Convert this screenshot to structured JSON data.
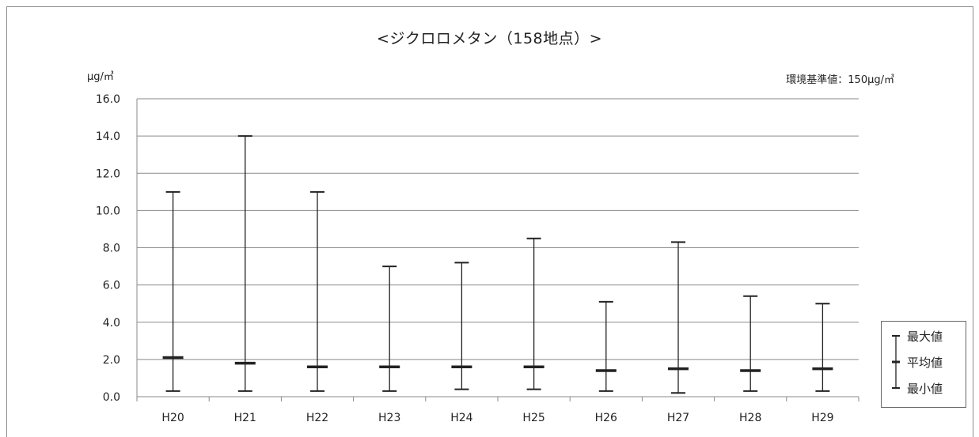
{
  "chart_data": {
    "type": "errorbar",
    "title": "<ジクロロメタン（158地点）>",
    "ylabel": "μg/㎥",
    "annotation": "環境基準値：150μg/㎥",
    "categories": [
      "H20",
      "H21",
      "H22",
      "H23",
      "H24",
      "H25",
      "H26",
      "H27",
      "H28",
      "H29"
    ],
    "series": [
      {
        "name": "最大値",
        "values": [
          11.0,
          14.0,
          11.0,
          7.0,
          7.2,
          8.5,
          5.1,
          8.3,
          5.4,
          5.0
        ]
      },
      {
        "name": "平均値",
        "values": [
          2.1,
          1.8,
          1.6,
          1.6,
          1.6,
          1.6,
          1.4,
          1.5,
          1.4,
          1.5
        ]
      },
      {
        "name": "最小値",
        "values": [
          0.3,
          0.3,
          0.3,
          0.3,
          0.4,
          0.4,
          0.3,
          0.2,
          0.3,
          0.3
        ]
      }
    ],
    "ylim": [
      0,
      16
    ],
    "yticks": [
      "0.0",
      "2.0",
      "4.0",
      "6.0",
      "8.0",
      "10.0",
      "12.0",
      "14.0",
      "16.0"
    ],
    "grid": true,
    "legend_position": "bottom-right"
  }
}
